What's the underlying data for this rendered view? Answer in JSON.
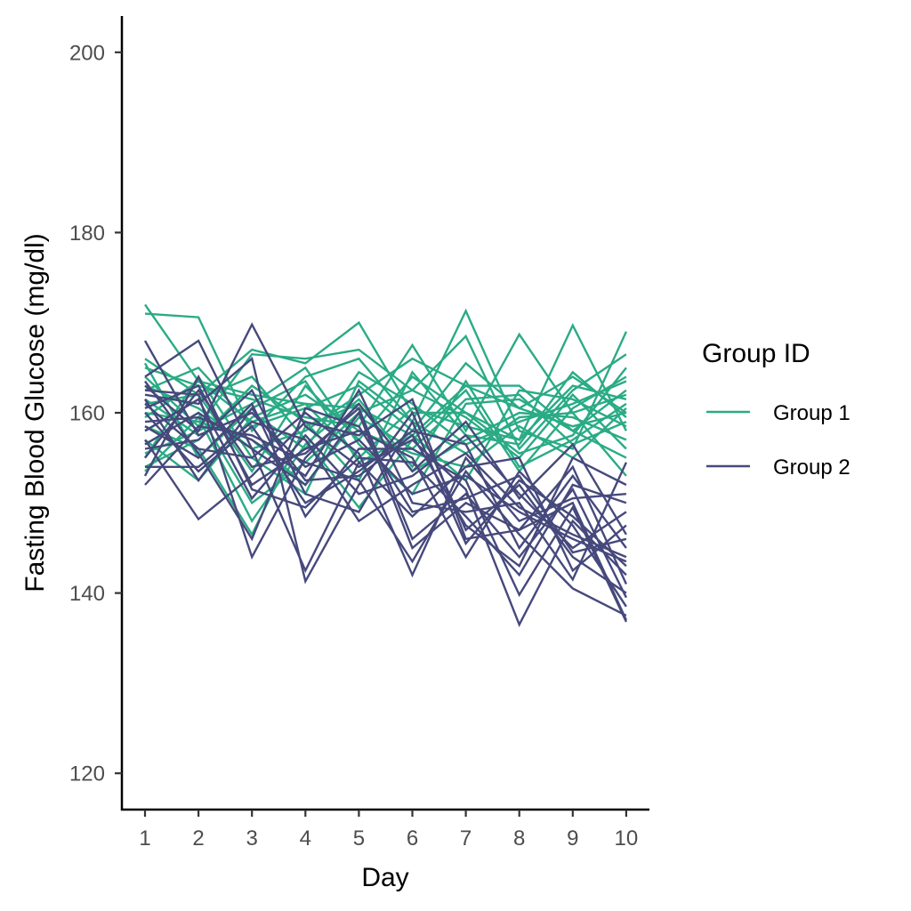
{
  "chart_data": {
    "type": "line",
    "title": "",
    "xlabel": "Day",
    "ylabel": "Fasting Blood Glucose (mg/dl)",
    "x": [
      1,
      2,
      3,
      4,
      5,
      6,
      7,
      8,
      9,
      10
    ],
    "x_ticks": [
      "1",
      "2",
      "3",
      "4",
      "5",
      "6",
      "7",
      "8",
      "9",
      "10"
    ],
    "y_ticks": [
      "120",
      "140",
      "160",
      "180",
      "200"
    ],
    "y_tick_values": [
      120,
      140,
      160,
      180,
      200
    ],
    "xlim": [
      0.55,
      10.45
    ],
    "ylim": [
      116,
      204
    ],
    "grid": false,
    "legend": {
      "title": "Group ID",
      "placement": "right",
      "entries": [
        {
          "name": "Group 1",
          "color": "#2aab85"
        },
        {
          "name": "Group 2",
          "color": "#46497c"
        }
      ]
    },
    "groups": [
      {
        "name": "Group 1",
        "color": "#2aab85",
        "series": [
          [
            172.0,
            163.5,
            159.0,
            161.0,
            160.5,
            157.5,
            163.0,
            160.5,
            158.5,
            160.0
          ],
          [
            171.0,
            170.6,
            158.0,
            164.0,
            166.0,
            159.0,
            171.3,
            158.0,
            156.0,
            169.0
          ],
          [
            166.0,
            162.0,
            167.0,
            165.5,
            170.0,
            160.0,
            160.0,
            157.0,
            169.7,
            158.0
          ],
          [
            165.0,
            163.0,
            161.5,
            159.5,
            158.5,
            167.5,
            158.0,
            168.7,
            160.0,
            162.0
          ],
          [
            164.0,
            158.5,
            166.5,
            166.0,
            167.0,
            162.5,
            168.5,
            156.0,
            162.5,
            166.5
          ],
          [
            163.0,
            160.5,
            156.0,
            158.0,
            162.0,
            166.0,
            163.0,
            163.0,
            158.0,
            155.0
          ],
          [
            162.5,
            165.0,
            158.5,
            160.5,
            163.0,
            158.0,
            165.5,
            160.5,
            164.0,
            160.0
          ],
          [
            161.5,
            157.5,
            160.0,
            156.0,
            164.5,
            161.0,
            156.5,
            159.0,
            161.0,
            163.5
          ],
          [
            161.0,
            162.0,
            153.5,
            163.0,
            157.0,
            164.0,
            160.0,
            155.5,
            157.5,
            165.0
          ],
          [
            160.0,
            159.0,
            157.0,
            152.0,
            159.5,
            156.0,
            161.5,
            162.0,
            156.5,
            159.0
          ],
          [
            159.5,
            163.5,
            162.0,
            161.0,
            155.0,
            160.5,
            158.5,
            157.0,
            163.0,
            161.5
          ],
          [
            158.5,
            156.0,
            146.5,
            158.5,
            161.0,
            153.5,
            157.0,
            160.0,
            159.5,
            157.0
          ],
          [
            158.0,
            161.5,
            164.0,
            157.0,
            149.5,
            157.0,
            162.5,
            153.5,
            160.5,
            164.0
          ],
          [
            157.0,
            152.5,
            159.5,
            162.0,
            158.0,
            155.5,
            154.0,
            158.5,
            155.0,
            160.5
          ],
          [
            156.5,
            160.0,
            150.0,
            154.5,
            160.0,
            162.5,
            159.5,
            155.0,
            162.0,
            156.0
          ],
          [
            155.5,
            158.0,
            161.0,
            165.0,
            156.5,
            151.0,
            161.0,
            161.5,
            158.0,
            162.5
          ],
          [
            155.0,
            164.0,
            155.0,
            151.0,
            163.5,
            159.0,
            155.5,
            159.5,
            160.0,
            153.0
          ],
          [
            154.0,
            157.0,
            163.0,
            159.0,
            152.5,
            164.5,
            157.5,
            156.5,
            164.5,
            159.5
          ],
          [
            153.5,
            159.5,
            148.0,
            156.5,
            161.5,
            154.0,
            163.5,
            154.0,
            157.0,
            161.0
          ],
          [
            165.5,
            155.0,
            160.5,
            163.5,
            154.5,
            157.5,
            152.5,
            162.5,
            161.5,
            158.5
          ]
        ]
      },
      {
        "name": "Group 2",
        "color": "#46497c",
        "series": [
          [
            168.0,
            157.5,
            160.0,
            154.0,
            157.0,
            151.0,
            153.0,
            149.0,
            146.0,
            143.5
          ],
          [
            164.0,
            168.0,
            156.0,
            152.0,
            160.0,
            145.0,
            150.0,
            147.0,
            150.0,
            137.0
          ],
          [
            163.0,
            158.0,
            169.8,
            158.5,
            154.0,
            157.0,
            151.5,
            136.5,
            148.0,
            142.0
          ],
          [
            162.5,
            162.0,
            144.0,
            155.0,
            161.0,
            153.5,
            159.0,
            150.5,
            156.5,
            146.5
          ],
          [
            162.0,
            161.0,
            166.0,
            141.3,
            152.0,
            160.0,
            147.0,
            152.0,
            144.0,
            140.0
          ],
          [
            161.0,
            156.0,
            155.0,
            160.0,
            155.5,
            142.0,
            155.0,
            148.0,
            150.5,
            151.0
          ],
          [
            160.5,
            163.0,
            152.0,
            156.0,
            158.0,
            155.0,
            144.0,
            153.5,
            147.5,
            138.5
          ],
          [
            160.0,
            153.5,
            158.5,
            150.0,
            153.5,
            158.0,
            156.5,
            145.0,
            153.0,
            145.0
          ],
          [
            159.0,
            159.5,
            157.0,
            153.0,
            162.5,
            150.0,
            149.0,
            150.0,
            141.5,
            154.5
          ],
          [
            158.5,
            155.0,
            161.0,
            148.5,
            156.0,
            156.0,
            152.5,
            139.8,
            149.5,
            136.8
          ],
          [
            158.0,
            161.5,
            150.5,
            157.5,
            151.0,
            153.0,
            157.5,
            151.0,
            145.0,
            149.0
          ],
          [
            157.0,
            148.2,
            153.0,
            159.0,
            157.5,
            161.5,
            146.0,
            147.0,
            154.0,
            141.0
          ],
          [
            156.5,
            160.0,
            156.0,
            142.5,
            154.5,
            148.5,
            154.0,
            155.0,
            142.5,
            147.5
          ],
          [
            156.0,
            157.0,
            162.5,
            151.0,
            149.0,
            159.0,
            145.5,
            152.5,
            148.5,
            143.0
          ],
          [
            155.0,
            162.5,
            154.0,
            155.5,
            160.5,
            146.0,
            151.0,
            144.0,
            151.5,
            139.5
          ],
          [
            154.0,
            154.0,
            159.0,
            157.0,
            148.0,
            152.0,
            155.5,
            149.5,
            146.5,
            144.0
          ],
          [
            153.0,
            164.0,
            151.5,
            149.5,
            155.0,
            154.5,
            148.5,
            142.0,
            152.0,
            150.0
          ],
          [
            152.0,
            158.5,
            157.5,
            154.5,
            152.5,
            143.5,
            153.5,
            146.5,
            140.5,
            137.5
          ],
          [
            163.5,
            155.5,
            146.0,
            160.5,
            158.5,
            149.0,
            150.5,
            153.0,
            144.5,
            146.0
          ],
          [
            161.5,
            152.5,
            160.5,
            152.5,
            153.0,
            157.5,
            147.5,
            143.0,
            155.0,
            152.0
          ]
        ]
      }
    ]
  }
}
